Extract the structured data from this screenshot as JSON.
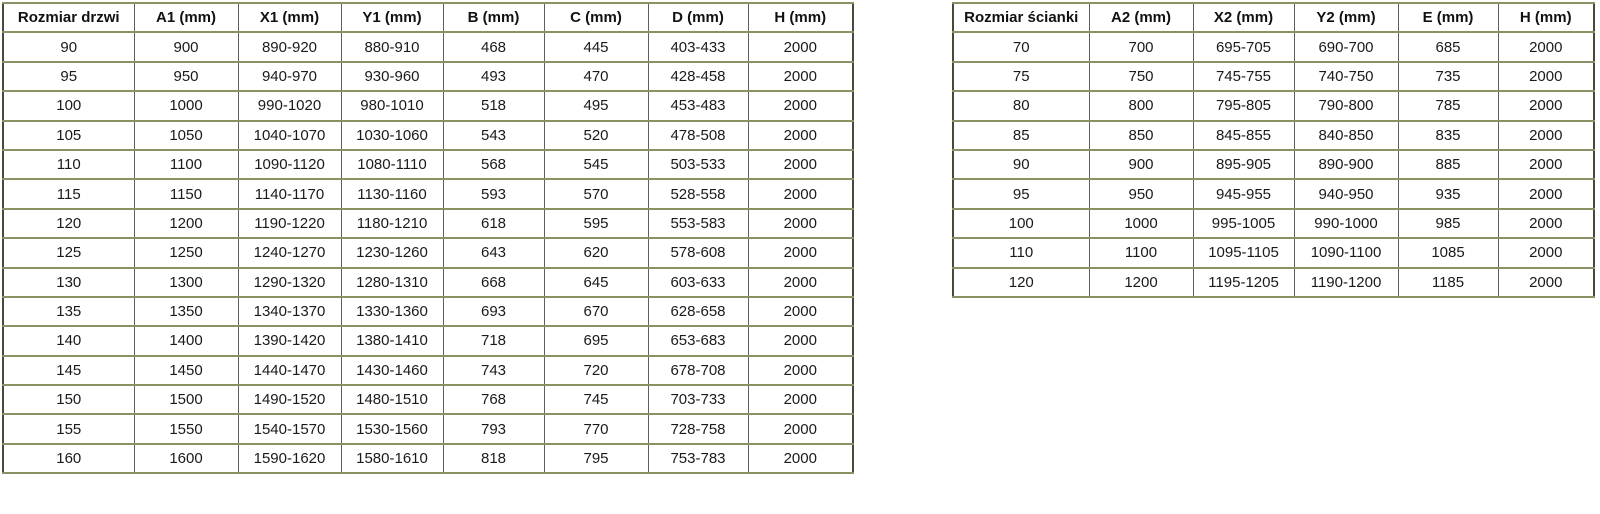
{
  "tables": {
    "doors": {
      "name": "door-sizes-table",
      "headers": [
        "Rozmiar drzwi",
        "A1 (mm)",
        "X1 (mm)",
        "Y1 (mm)",
        "B (mm)",
        "C (mm)",
        "D (mm)",
        "H (mm)"
      ],
      "rows": [
        [
          "90",
          "900",
          "890-920",
          "880-910",
          "468",
          "445",
          "403-433",
          "2000"
        ],
        [
          "95",
          "950",
          "940-970",
          "930-960",
          "493",
          "470",
          "428-458",
          "2000"
        ],
        [
          "100",
          "1000",
          "990-1020",
          "980-1010",
          "518",
          "495",
          "453-483",
          "2000"
        ],
        [
          "105",
          "1050",
          "1040-1070",
          "1030-1060",
          "543",
          "520",
          "478-508",
          "2000"
        ],
        [
          "110",
          "1100",
          "1090-1120",
          "1080-1110",
          "568",
          "545",
          "503-533",
          "2000"
        ],
        [
          "115",
          "1150",
          "1140-1170",
          "1130-1160",
          "593",
          "570",
          "528-558",
          "2000"
        ],
        [
          "120",
          "1200",
          "1190-1220",
          "1180-1210",
          "618",
          "595",
          "553-583",
          "2000"
        ],
        [
          "125",
          "1250",
          "1240-1270",
          "1230-1260",
          "643",
          "620",
          "578-608",
          "2000"
        ],
        [
          "130",
          "1300",
          "1290-1320",
          "1280-1310",
          "668",
          "645",
          "603-633",
          "2000"
        ],
        [
          "135",
          "1350",
          "1340-1370",
          "1330-1360",
          "693",
          "670",
          "628-658",
          "2000"
        ],
        [
          "140",
          "1400",
          "1390-1420",
          "1380-1410",
          "718",
          "695",
          "653-683",
          "2000"
        ],
        [
          "145",
          "1450",
          "1440-1470",
          "1430-1460",
          "743",
          "720",
          "678-708",
          "2000"
        ],
        [
          "150",
          "1500",
          "1490-1520",
          "1480-1510",
          "768",
          "745",
          "703-733",
          "2000"
        ],
        [
          "155",
          "1550",
          "1540-1570",
          "1530-1560",
          "793",
          "770",
          "728-758",
          "2000"
        ],
        [
          "160",
          "1600",
          "1590-1620",
          "1580-1610",
          "818",
          "795",
          "753-783",
          "2000"
        ]
      ]
    },
    "walls": {
      "name": "wall-sizes-table",
      "headers": [
        "Rozmiar ścianki",
        "A2 (mm)",
        "X2 (mm)",
        "Y2 (mm)",
        "E (mm)",
        "H (mm)"
      ],
      "rows": [
        [
          "70",
          "700",
          "695-705",
          "690-700",
          "685",
          "2000"
        ],
        [
          "75",
          "750",
          "745-755",
          "740-750",
          "735",
          "2000"
        ],
        [
          "80",
          "800",
          "795-805",
          "790-800",
          "785",
          "2000"
        ],
        [
          "85",
          "850",
          "845-855",
          "840-850",
          "835",
          "2000"
        ],
        [
          "90",
          "900",
          "895-905",
          "890-900",
          "885",
          "2000"
        ],
        [
          "95",
          "950",
          "945-955",
          "940-950",
          "935",
          "2000"
        ],
        [
          "100",
          "1000",
          "995-1005",
          "990-1000",
          "985",
          "2000"
        ],
        [
          "110",
          "1100",
          "1095-1105",
          "1090-1100",
          "1085",
          "2000"
        ],
        [
          "120",
          "1200",
          "1195-1205",
          "1190-1200",
          "1185",
          "2000"
        ]
      ]
    }
  },
  "colors": {
    "background": "#ffffff",
    "text": "#1a1a1a",
    "border_horizontal": "#8b9164",
    "border_vertical": "#606055",
    "border_outer": "#474a39"
  }
}
